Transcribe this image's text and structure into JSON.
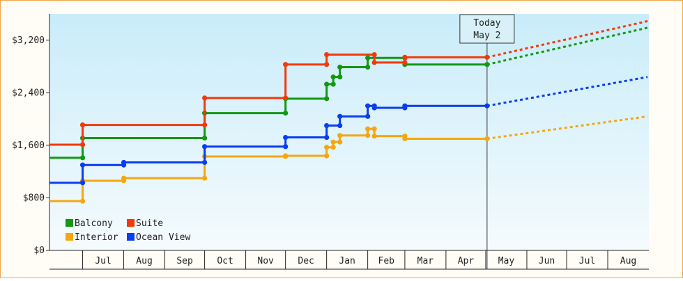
{
  "chart_data": {
    "type": "line",
    "step": true,
    "ylim": [
      0,
      3600
    ],
    "yticks": [
      0,
      800,
      1600,
      2400,
      3200
    ],
    "ytick_labels": [
      "$0",
      "$800",
      "$1,600",
      "$2,400",
      "$3,200"
    ],
    "x_domain": [
      "2024-06-06",
      "2025-08-31"
    ],
    "months": [
      {
        "label": "",
        "start": "2024-06-06",
        "end": "2024-06-30"
      },
      {
        "label": "Jul",
        "start": "2024-07-01",
        "end": "2024-07-31"
      },
      {
        "label": "Aug",
        "start": "2024-08-01",
        "end": "2024-08-31"
      },
      {
        "label": "Sep",
        "start": "2024-09-01",
        "end": "2024-09-30"
      },
      {
        "label": "Oct",
        "start": "2024-10-01",
        "end": "2024-10-31"
      },
      {
        "label": "Nov",
        "start": "2024-11-01",
        "end": "2024-11-30"
      },
      {
        "label": "Dec",
        "start": "2024-12-01",
        "end": "2024-12-31"
      },
      {
        "label": "Jan",
        "start": "2025-01-01",
        "end": "2025-01-31"
      },
      {
        "label": "Feb",
        "start": "2025-02-01",
        "end": "2025-02-28"
      },
      {
        "label": "Mar",
        "start": "2025-03-01",
        "end": "2025-03-31"
      },
      {
        "label": "Apr",
        "start": "2025-04-01",
        "end": "2025-04-30"
      },
      {
        "label": "May",
        "start": "2025-05-01",
        "end": "2025-05-31"
      },
      {
        "label": "Jun",
        "start": "2025-06-01",
        "end": "2025-06-30"
      },
      {
        "label": "Jul",
        "start": "2025-07-01",
        "end": "2025-07-31"
      },
      {
        "label": "Aug",
        "start": "2025-08-01",
        "end": "2025-08-31"
      }
    ],
    "today": {
      "line1": "Today",
      "line2": "May 2",
      "date": "2025-05-02"
    },
    "legend_position": "bottom-left",
    "series": [
      {
        "name": "Balcony",
        "color": "#129812",
        "points": [
          [
            "2024-06-06",
            1410
          ],
          [
            "2024-07-01",
            1410
          ],
          [
            "2024-07-01",
            1710
          ],
          [
            "2024-10-01",
            1710
          ],
          [
            "2024-10-01",
            2090
          ],
          [
            "2024-12-01",
            2090
          ],
          [
            "2024-12-01",
            2310
          ],
          [
            "2025-01-01",
            2310
          ],
          [
            "2025-01-01",
            2530
          ],
          [
            "2025-01-06",
            2530
          ],
          [
            "2025-01-06",
            2640
          ],
          [
            "2025-01-11",
            2640
          ],
          [
            "2025-01-11",
            2790
          ],
          [
            "2025-02-01",
            2790
          ],
          [
            "2025-02-01",
            2930
          ],
          [
            "2025-03-01",
            2930
          ],
          [
            "2025-03-01",
            2830
          ],
          [
            "2025-05-02",
            2830
          ]
        ],
        "forecast": [
          [
            "2025-05-02",
            2830
          ],
          [
            "2025-08-31",
            3390
          ]
        ]
      },
      {
        "name": "Suite",
        "color": "#f03a0a",
        "points": [
          [
            "2024-06-06",
            1610
          ],
          [
            "2024-07-01",
            1610
          ],
          [
            "2024-07-01",
            1910
          ],
          [
            "2024-10-01",
            1910
          ],
          [
            "2024-10-01",
            2320
          ],
          [
            "2024-12-01",
            2320
          ],
          [
            "2024-12-01",
            2830
          ],
          [
            "2025-01-01",
            2830
          ],
          [
            "2025-01-01",
            2980
          ],
          [
            "2025-02-06",
            2980
          ],
          [
            "2025-02-06",
            2860
          ],
          [
            "2025-03-01",
            2860
          ],
          [
            "2025-03-01",
            2940
          ],
          [
            "2025-05-02",
            2940
          ]
        ],
        "forecast": [
          [
            "2025-05-02",
            2940
          ],
          [
            "2025-08-31",
            3490
          ]
        ]
      },
      {
        "name": "Interior",
        "color": "#f5a612",
        "points": [
          [
            "2024-06-06",
            750
          ],
          [
            "2024-07-01",
            750
          ],
          [
            "2024-07-01",
            1060
          ],
          [
            "2024-08-01",
            1060
          ],
          [
            "2024-08-01",
            1100
          ],
          [
            "2024-10-01",
            1100
          ],
          [
            "2024-10-01",
            1430
          ],
          [
            "2024-12-01",
            1430
          ],
          [
            "2024-12-01",
            1440
          ],
          [
            "2025-01-01",
            1440
          ],
          [
            "2025-01-01",
            1570
          ],
          [
            "2025-01-06",
            1570
          ],
          [
            "2025-01-06",
            1650
          ],
          [
            "2025-01-11",
            1650
          ],
          [
            "2025-01-11",
            1750
          ],
          [
            "2025-02-01",
            1750
          ],
          [
            "2025-02-01",
            1850
          ],
          [
            "2025-02-06",
            1850
          ],
          [
            "2025-02-06",
            1740
          ],
          [
            "2025-03-01",
            1740
          ],
          [
            "2025-03-01",
            1700
          ],
          [
            "2025-05-02",
            1700
          ]
        ],
        "forecast": [
          [
            "2025-05-02",
            1700
          ],
          [
            "2025-08-31",
            2040
          ]
        ]
      },
      {
        "name": "Ocean View",
        "color": "#0a3cf0",
        "points": [
          [
            "2024-06-06",
            1030
          ],
          [
            "2024-07-01",
            1030
          ],
          [
            "2024-07-01",
            1300
          ],
          [
            "2024-08-01",
            1300
          ],
          [
            "2024-08-01",
            1340
          ],
          [
            "2024-10-01",
            1340
          ],
          [
            "2024-10-01",
            1580
          ],
          [
            "2024-12-01",
            1580
          ],
          [
            "2024-12-01",
            1720
          ],
          [
            "2025-01-01",
            1720
          ],
          [
            "2025-01-01",
            1900
          ],
          [
            "2025-01-11",
            1900
          ],
          [
            "2025-01-11",
            2040
          ],
          [
            "2025-02-01",
            2040
          ],
          [
            "2025-02-01",
            2200
          ],
          [
            "2025-02-06",
            2200
          ],
          [
            "2025-02-06",
            2170
          ],
          [
            "2025-03-01",
            2170
          ],
          [
            "2025-03-01",
            2200
          ],
          [
            "2025-05-02",
            2200
          ]
        ],
        "forecast": [
          [
            "2025-05-02",
            2200
          ],
          [
            "2025-08-31",
            2640
          ]
        ]
      }
    ],
    "legend_order": [
      "Balcony",
      "Suite",
      "Interior",
      "Ocean View"
    ]
  }
}
